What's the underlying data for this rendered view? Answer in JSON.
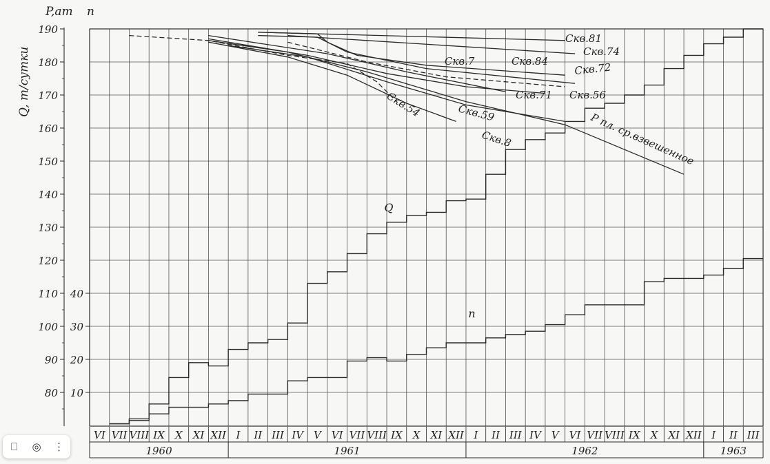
{
  "chart_data": {
    "type": "line",
    "y_axis_left_label": "Q, т/сутки",
    "y_axis_left_ticks": [
      80,
      90,
      100,
      110,
      120,
      130,
      140,
      150,
      160,
      170,
      180,
      190
    ],
    "y_axis_right_label": "n",
    "y_axis_right_ticks": [
      10,
      20,
      30,
      40
    ],
    "p_axis_label": "P,ат",
    "ylim": [
      70,
      190
    ],
    "months": [
      "VI",
      "VII",
      "VIII",
      "IX",
      "X",
      "XI",
      "XII",
      "I",
      "II",
      "III",
      "IV",
      "V",
      "VI",
      "VII",
      "VIII",
      "IX",
      "X",
      "XI",
      "XII",
      "I",
      "II",
      "III",
      "IV",
      "V",
      "VI",
      "VII",
      "VIII",
      "IX",
      "X",
      "XI",
      "XII",
      "I",
      "II",
      "III"
    ],
    "years": [
      {
        "label": "1960",
        "start": 0,
        "end": 7
      },
      {
        "label": "1961",
        "start": 7,
        "end": 19
      },
      {
        "label": "1962",
        "start": 19,
        "end": 31
      },
      {
        "label": "1963",
        "start": 31,
        "end": 34
      }
    ],
    "step_series": [
      {
        "name": "Q",
        "label_at": 15.1,
        "label_value": 133.5,
        "values": [
          null,
          70.5,
          72,
          76.5,
          84.5,
          89,
          88,
          93,
          95,
          96,
          101,
          113,
          116.5,
          122,
          128,
          131.5,
          133.5,
          134.5,
          138,
          138.5,
          146,
          153.5,
          156.5,
          158.5,
          162,
          166,
          167.5,
          170,
          173,
          178,
          182,
          185.5,
          187.5,
          190
        ]
      },
      {
        "name": "n",
        "label_at": 19.3,
        "label_value": 31.5,
        "values": [
          null,
          0.5,
          1.5,
          3.5,
          5.5,
          5.5,
          6.5,
          7.5,
          9.5,
          9.5,
          13.5,
          14.5,
          14.5,
          19.5,
          20.5,
          19.5,
          21.5,
          23.5,
          25,
          25,
          26.5,
          27.5,
          28.5,
          30.5,
          33.5,
          36.5,
          36.5,
          36.5,
          43.5,
          44.5,
          44.5,
          45.5,
          47.5,
          50.5
        ]
      }
    ],
    "pressure_series": [
      {
        "name": "Скв.81",
        "dash": false,
        "points": [
          [
            8.5,
            189
          ],
          [
            24,
            186.5
          ]
        ]
      },
      {
        "name": "Скв.74",
        "dash": false,
        "points": [
          [
            10,
            188
          ],
          [
            14,
            186.5
          ],
          [
            24.5,
            182.5
          ]
        ]
      },
      {
        "name": "Скв.84",
        "dash": false,
        "points": [
          [
            8.5,
            189
          ],
          [
            11.5,
            188.5
          ],
          [
            12,
            186
          ],
          [
            13.5,
            182
          ],
          [
            17,
            179
          ],
          [
            24,
            176
          ]
        ]
      },
      {
        "name": "Скв.7",
        "dash": false,
        "points": [
          [
            8.5,
            188
          ],
          [
            11.5,
            187.5
          ],
          [
            13,
            183
          ],
          [
            17,
            178
          ],
          [
            24.5,
            173.5
          ]
        ]
      },
      {
        "name": "Скв.72",
        "dash": true,
        "points": [
          [
            10,
            186
          ],
          [
            12,
            183
          ],
          [
            14,
            180
          ],
          [
            18,
            175.5
          ],
          [
            24,
            172.5
          ]
        ]
      },
      {
        "name": "Скв.71",
        "dash": false,
        "points": [
          [
            6,
            188
          ],
          [
            12,
            182.5
          ],
          [
            16,
            177
          ],
          [
            21,
            171
          ]
        ]
      },
      {
        "name": "Скв.56",
        "dash": false,
        "points": [
          [
            6,
            187
          ],
          [
            11,
            182
          ],
          [
            15,
            176.5
          ],
          [
            19,
            172.5
          ],
          [
            23,
            170.5
          ]
        ]
      },
      {
        "name": "Скв.54",
        "dash": true,
        "points": [
          [
            2,
            188
          ],
          [
            6,
            186.5
          ],
          [
            10,
            182
          ],
          [
            13,
            179.5
          ],
          [
            14.5,
            174
          ],
          [
            15.5,
            168
          ]
        ]
      },
      {
        "name": "Скв.59",
        "dash": false,
        "points": [
          [
            7,
            185
          ],
          [
            11,
            181.5
          ],
          [
            15,
            174
          ],
          [
            19,
            167
          ],
          [
            24,
            162
          ]
        ]
      },
      {
        "name": "Скв.8",
        "dash": false,
        "points": [
          [
            6,
            186
          ],
          [
            10,
            181.5
          ],
          [
            13,
            176
          ],
          [
            16,
            167.5
          ],
          [
            18.5,
            162
          ]
        ]
      },
      {
        "name": "P пл. ср.взвешенное",
        "dash": false,
        "points": [
          [
            6,
            186.5
          ],
          [
            10,
            183
          ],
          [
            14,
            177
          ],
          [
            19,
            168
          ],
          [
            24,
            161
          ],
          [
            30,
            146
          ]
        ]
      }
    ],
    "p_series_labels": [
      "Скв.81",
      "Скв.74",
      "Скв.84",
      "Скв.7",
      "Скв.72",
      "Скв.71",
      "Скв.56",
      "Скв.54",
      "Скв.59",
      "Скв.8",
      "P пл. ср.взвешенное"
    ]
  },
  "ui": {
    "icons": [
      "bookmark-icon",
      "camera-icon",
      "more-vertical-icon"
    ],
    "bookmark": "⎕",
    "lens": "◎",
    "more": "⋮"
  }
}
